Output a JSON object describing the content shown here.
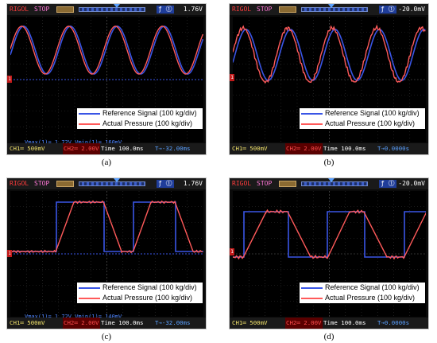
{
  "colors": {
    "reference": "#3a55e6",
    "actual": "#ff5a5a",
    "ch1": "#f2e36b",
    "brand": "#ff3b3b",
    "stop": "#ff77d6",
    "grid": "#2f2f2f"
  },
  "legend": {
    "reference": "Reference Signal (100 kg/div)",
    "actual": "Actual Pressure (100 kg/div)"
  },
  "panels": [
    {
      "id": "a",
      "caption": "(a)",
      "brand": "RIGOL",
      "status": "STOP",
      "trigger_level": "1.76V",
      "ch1": "CH1═ 500mV",
      "ch2": "CH2═ 2.00V",
      "time": "Time 100.0ms",
      "offset": "T→-32.00ms",
      "measure": "Vmax(1)= 1.72V   Vmin(1)= 160mV",
      "shape": "sine"
    },
    {
      "id": "b",
      "caption": "(b)",
      "brand": "RIGOL",
      "status": "STOP",
      "trigger_level": "-20.0mV",
      "ch1": "CH1═ 500mV",
      "ch2": "CH2═ 2.00V",
      "time": "Time 100.0ms",
      "offset": "T→0.0000s",
      "measure": "",
      "shape": "sine2"
    },
    {
      "id": "c",
      "caption": "(c)",
      "brand": "RIGOL",
      "status": "STOP",
      "trigger_level": "1.76V",
      "ch1": "CH1═ 500mV",
      "ch2": "CH2═ 2.00V",
      "time": "Time 100.0ms",
      "offset": "T→-32.00ms",
      "measure": "Vmax(1)= 1.72V   Vmin(1)= 140mV",
      "shape": "square"
    },
    {
      "id": "d",
      "caption": "(d)",
      "brand": "RIGOL",
      "status": "STOP",
      "trigger_level": "-20.0mV",
      "ch1": "CH1═ 500mV",
      "ch2": "CH2═ 2.00V",
      "time": "Time 100.0ms",
      "offset": "T→0.0000s",
      "measure": "",
      "shape": "square2"
    }
  ]
}
